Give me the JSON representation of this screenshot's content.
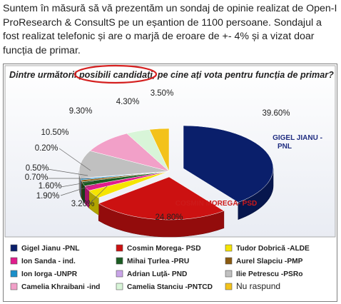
{
  "intro": {
    "lines": [
      "Suntem în măsură să vă prezentăm un sondaj de opinie realizat de Open-I",
      "ProResearch & ConsultS pe un eșantion de 1100 persoane. Sondajul a",
      "fost realizat telefonic și are o marjă de eroare de +- 4% și a vizat doar",
      "funcția de primar."
    ]
  },
  "chart_data": {
    "type": "pie",
    "title": "Dintre următorii posibili candidați, pe cine ați vota pentru funcția de primar?",
    "title_highlight": "posibili candidați",
    "legend_position": "bottom",
    "slices": [
      {
        "name": "Gigel Jianu -PNL",
        "value": 39.6,
        "label": "39.60%",
        "color": "#0a1f6b",
        "callout": "GIGEL JIANU - PNL"
      },
      {
        "name": "Cosmin Morega- PSD",
        "value": 24.8,
        "label": "24.80%",
        "color": "#cc1111",
        "callout": "COSMIN MOREGA- PSD"
      },
      {
        "name": "Tudor Dobrică -ALDE",
        "value": 3.2,
        "label": "3.20%",
        "color": "#f5e400"
      },
      {
        "name": "Ion Sanda - ind.",
        "value": 1.9,
        "label": "1.90%",
        "color": "#e01c8c"
      },
      {
        "name": "Mihai Țurlea -PRU",
        "value": 1.6,
        "label": "1.60%",
        "color": "#1a5c22"
      },
      {
        "name": "Aurel Slapciu -PMP",
        "value": 0.7,
        "label": "0.70%",
        "color": "#8a5a10"
      },
      {
        "name": "Ion Iorga -UNPR",
        "value": 0.5,
        "label": "0.50%",
        "color": "#1a8fc9"
      },
      {
        "name": "Adrian Luță- PND",
        "value": 0.2,
        "label": "0.20%",
        "color": "#c9a4e8"
      },
      {
        "name": "Ilie Petrescu -PSRo",
        "value": 10.5,
        "label": "10.50%",
        "color": "#c0c0c0"
      },
      {
        "name": "Camelia Khraibani -ind",
        "value": 9.3,
        "label": "9.30%",
        "color": "#f2a0c8"
      },
      {
        "name": "Camelia Stanciu -PNTCD",
        "value": 4.3,
        "label": "4.30%",
        "color": "#d8f5d8"
      },
      {
        "name": "Nu raspund",
        "value": 3.5,
        "label": "3.50%",
        "color": "#f3c21a"
      }
    ],
    "legend": [
      [
        "Gigel Jianu -PNL",
        "Cosmin Morega- PSD",
        "Tudor Dobrică -ALDE"
      ],
      [
        "Ion Sanda - ind.",
        "Mihai Țurlea -PRU",
        "Aurel Slapciu -PMP"
      ],
      [
        "Ion Iorga -UNPR",
        "Adrian Luță- PND",
        "Ilie Petrescu -PSRo"
      ],
      [
        "Camelia Khraibani -ind",
        "Camelia Stanciu -PNTCD",
        "Nu raspund"
      ]
    ]
  }
}
